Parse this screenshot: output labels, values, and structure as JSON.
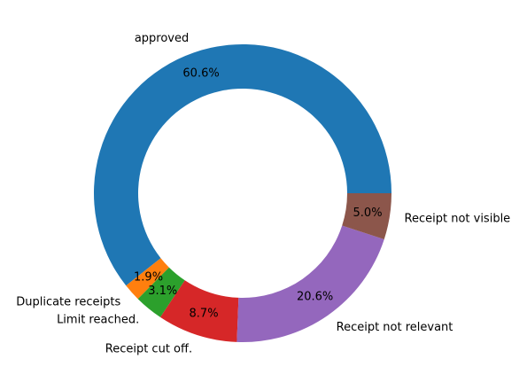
{
  "chart_data": {
    "type": "pie",
    "donut": true,
    "start_angle_deg": 0,
    "direction": "counterclockwise",
    "slices": [
      {
        "label": "approved",
        "value": 60.6,
        "pct_label": "60.6%",
        "color": "#1f77b4"
      },
      {
        "label": "Duplicate receipts",
        "value": 1.9,
        "pct_label": "1.9%",
        "color": "#ff7f0e"
      },
      {
        "label": "Limit reached.",
        "value": 3.1,
        "pct_label": "3.1%",
        "color": "#2ca02c"
      },
      {
        "label": "Receipt cut off.",
        "value": 8.7,
        "pct_label": "8.7%",
        "color": "#d62728"
      },
      {
        "label": "Receipt not relevant",
        "value": 20.6,
        "pct_label": "20.6%",
        "color": "#9467bd"
      },
      {
        "label": "Receipt not visible",
        "value": 5.0,
        "pct_label": "5.0%",
        "color": "#8c564b"
      }
    ]
  }
}
